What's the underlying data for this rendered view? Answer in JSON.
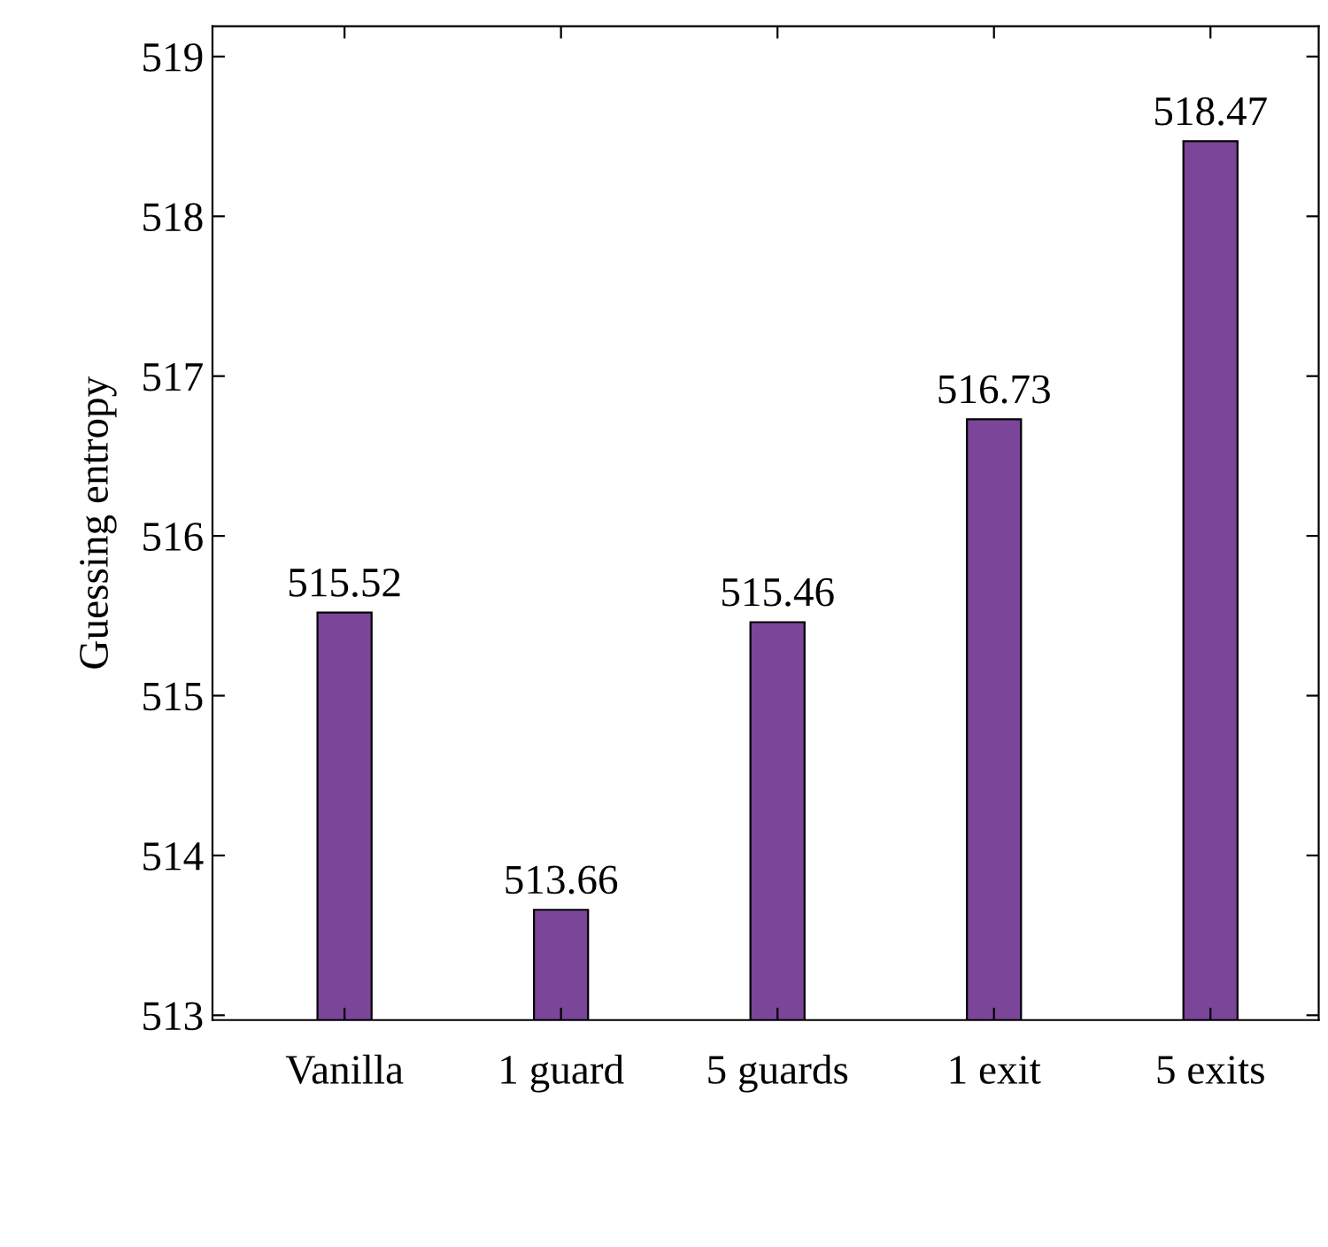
{
  "chart_data": {
    "type": "bar",
    "ylabel": "Guessing entropy",
    "categories": [
      "Vanilla",
      "1 guard",
      "5 guards",
      "1 exit",
      "5 exits"
    ],
    "series": [
      {
        "color": "#7b4599",
        "values": [
          515.52,
          513.66,
          515.46,
          516.73,
          518.47
        ]
      }
    ],
    "ylim": [
      512.97,
      519.19
    ],
    "yticks": [
      513,
      514,
      515,
      516,
      517,
      518,
      519
    ],
    "data_labels": true,
    "grid": false,
    "legend": false
  }
}
